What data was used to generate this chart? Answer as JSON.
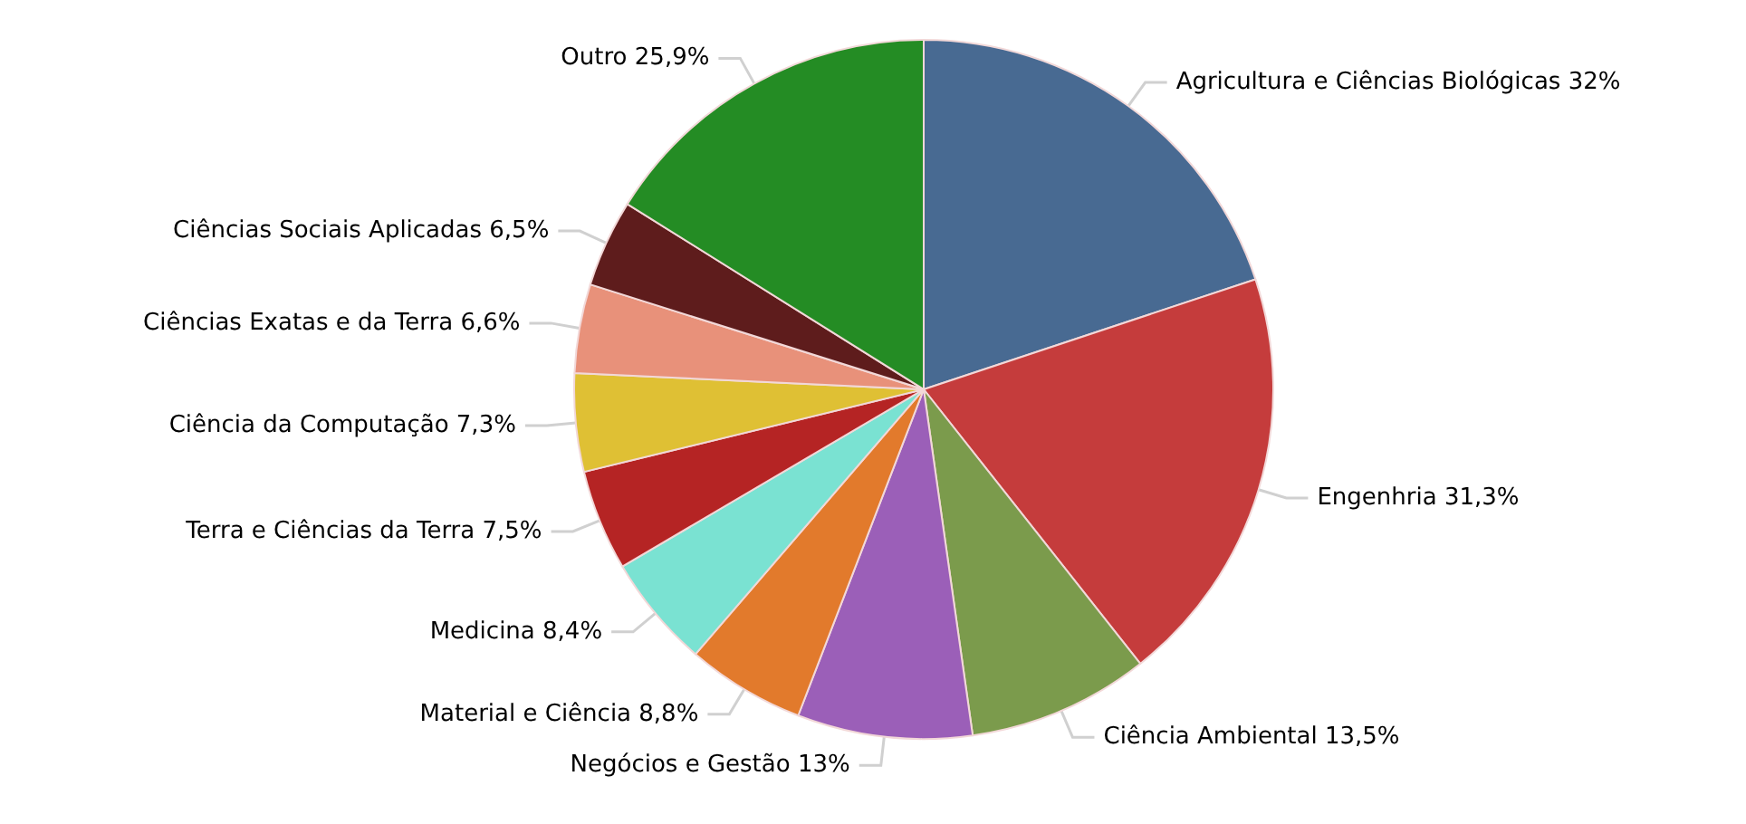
{
  "chart_data": {
    "type": "pie",
    "categories": [
      "Agricultura e Ciências Biológicas",
      "Engenhria",
      "Ciência Ambiental",
      "Negócios e Gestão",
      "Material e Ciência",
      "Medicina",
      "Terra e Ciências da Terra",
      "Ciência da Computação",
      "Ciências Exatas e da Terra",
      "Ciências Sociais Aplicadas",
      "Outro"
    ],
    "values": [
      32,
      31.3,
      13.5,
      13,
      8.8,
      8.4,
      7.5,
      7.3,
      6.6,
      6.5,
      25.9
    ],
    "value_labels": [
      "32%",
      "31,3%",
      "13,5%",
      "13%",
      "8,8%",
      "8,4%",
      "7,5%",
      "7,3%",
      "6,6%",
      "6,5%",
      "25,9%"
    ],
    "colors": [
      "#486a92",
      "#c53c3c",
      "#7b9b4c",
      "#9b5fb8",
      "#e27a2c",
      "#7ae2d2",
      "#b52424",
      "#dfc034",
      "#e8917a",
      "#5e1c1c",
      "#248c24"
    ]
  }
}
